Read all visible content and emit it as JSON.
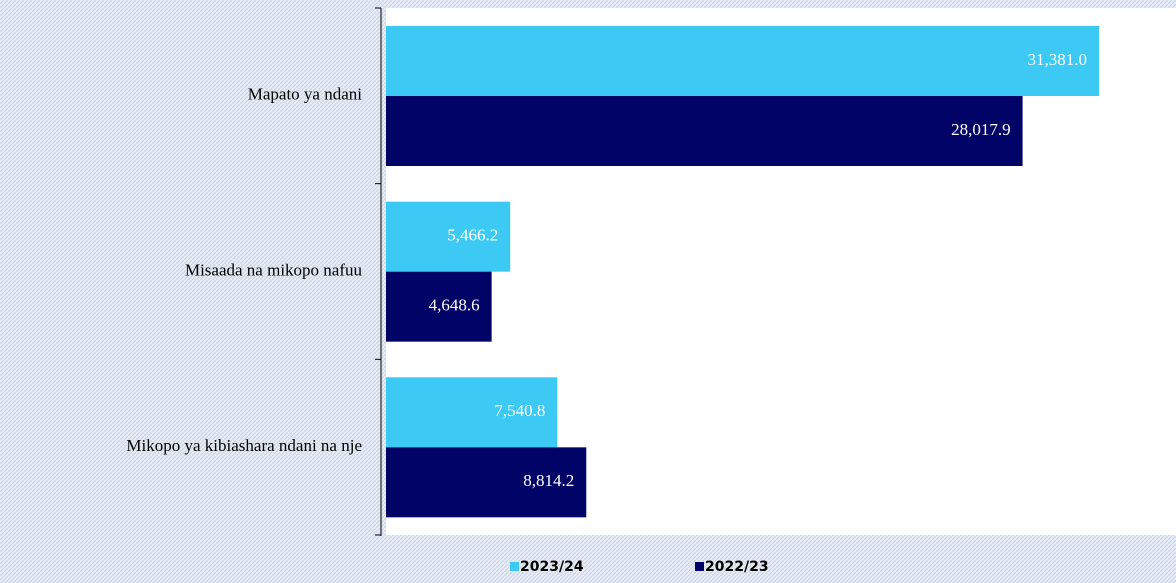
{
  "chart_data": {
    "type": "barh",
    "categories": [
      "Mapato ya ndani",
      "Misaada na mikopo nafuu",
      "Mikopo ya kibiashara ndani na nje"
    ],
    "series": [
      {
        "name": "2023/24",
        "color": "#3cc9f3",
        "values": [
          31381.0,
          5466.2,
          7540.8
        ],
        "value_labels": [
          "31,381.0",
          "5,466.2",
          "7,540.8"
        ]
      },
      {
        "name": "2022/23",
        "color": "#020366",
        "values": [
          28017.9,
          4648.6,
          8814.2
        ],
        "value_labels": [
          "28,017.9",
          "4,648.6",
          "8,814.2"
        ]
      }
    ]
  }
}
